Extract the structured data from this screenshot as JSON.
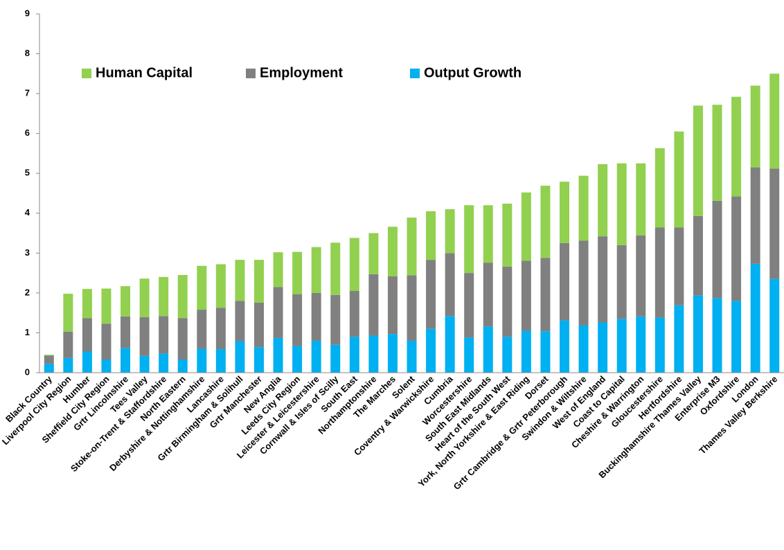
{
  "chart_data": {
    "type": "stacked_bar",
    "categories": [
      "Black Country",
      "Liverpool City Region",
      "Humber",
      "Sheffield City Region",
      "Grtr Lincolnshire",
      "Tees Valley",
      "Stoke-on-Trent & Staffordshire",
      "North Eastern",
      "Derbyshire & Nottinghamshire",
      "Lancashire",
      "Grtr Birmingham & Solihull",
      "Grtr Manchester",
      "New Anglia",
      "Leeds City Region",
      "Leicester & Leicestershire",
      "Cornwall & Isles of Scilly",
      "South East",
      "Northamptonshire",
      "The Marches",
      "Solent",
      "Coventry & Warwickshire",
      "Cumbria",
      "Worcestershire",
      "South East Midlands",
      "Heart of the South West",
      "York, North Yorkshire & East Riding",
      "Dorset",
      "Grtr Cambridge & Grtr Peterborough",
      "Swindon & Wiltshire",
      "West of England",
      "Coast to Capital",
      "Cheshire & Warrington",
      "Gloucestershire",
      "Hertfordshire",
      "Buckinghamshire Thames Valley",
      "Enterprise M3",
      "Oxfordshire",
      "London",
      "Thames Valley Berkshire"
    ],
    "series": [
      {
        "name": "Output Growth",
        "color": "#00b0f0",
        "values": [
          0.22,
          0.37,
          0.53,
          0.33,
          0.62,
          0.42,
          0.48,
          0.33,
          0.6,
          0.59,
          0.79,
          0.64,
          0.87,
          0.67,
          0.8,
          0.7,
          0.9,
          0.93,
          0.97,
          0.8,
          1.1,
          1.42,
          0.88,
          1.16,
          0.9,
          1.05,
          1.04,
          1.31,
          1.19,
          1.26,
          1.35,
          1.41,
          1.38,
          1.69,
          1.94,
          1.87,
          1.8,
          2.73,
          2.35
        ]
      },
      {
        "name": "Employment",
        "color": "#808080",
        "values": [
          0.21,
          0.66,
          0.84,
          0.9,
          0.79,
          0.97,
          0.94,
          1.04,
          0.98,
          1.04,
          1.01,
          1.12,
          1.28,
          1.3,
          1.2,
          1.25,
          1.15,
          1.54,
          1.45,
          1.64,
          1.73,
          1.58,
          1.62,
          1.6,
          1.76,
          1.76,
          1.84,
          1.94,
          2.12,
          2.16,
          1.85,
          2.03,
          2.26,
          1.95,
          1.99,
          2.44,
          2.62,
          2.42,
          2.77
        ]
      },
      {
        "name": "Human Capital",
        "color": "#92d050",
        "values": [
          0.02,
          0.95,
          0.73,
          0.88,
          0.76,
          0.97,
          0.98,
          1.08,
          1.1,
          1.09,
          1.03,
          1.07,
          0.87,
          1.06,
          1.15,
          1.31,
          1.33,
          1.03,
          1.24,
          1.45,
          1.22,
          1.1,
          1.7,
          1.44,
          1.58,
          1.71,
          1.81,
          1.54,
          1.63,
          1.81,
          2.05,
          1.81,
          1.99,
          2.41,
          2.77,
          2.41,
          2.5,
          2.05,
          2.38
        ]
      }
    ],
    "ylim": [
      0,
      9
    ],
    "yticks": [
      0,
      1,
      2,
      3,
      4,
      5,
      6,
      7,
      8,
      9
    ],
    "grid": false,
    "legend": "top-left"
  }
}
